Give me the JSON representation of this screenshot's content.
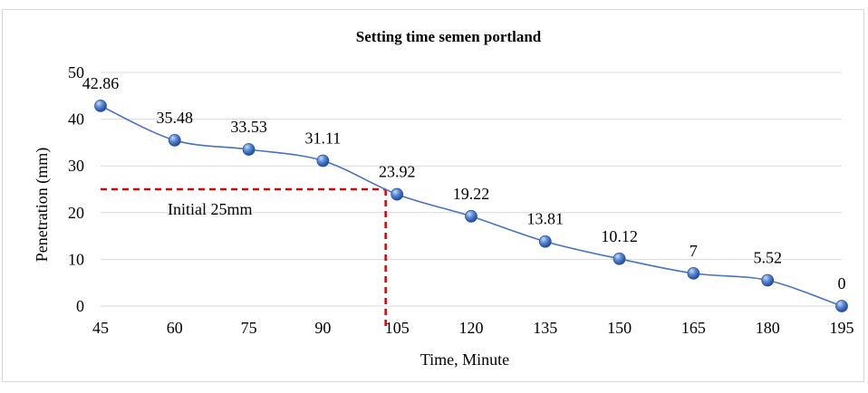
{
  "chart_data": {
    "type": "line",
    "title": "Setting time semen portland",
    "xlabel": "Time, Minute",
    "ylabel": "Penetration (mm)",
    "x": [
      45,
      60,
      75,
      90,
      105,
      120,
      135,
      150,
      165,
      180,
      195
    ],
    "series": [
      {
        "values": [
          42.86,
          35.48,
          33.53,
          31.11,
          23.92,
          19.22,
          13.81,
          10.12,
          7,
          5.52,
          0
        ],
        "labels": [
          "42.86",
          "35.48",
          "33.53",
          "31.11",
          "23.92",
          "19.22",
          "13.81",
          "10.12",
          "7",
          "5.52",
          "0"
        ],
        "color": "#4472c4"
      }
    ],
    "xlim": [
      45,
      195
    ],
    "ylim": [
      0,
      50
    ],
    "yticks": [
      0,
      10,
      20,
      30,
      40,
      50
    ],
    "xticks": [
      45,
      60,
      75,
      90,
      105,
      120,
      135,
      150,
      165,
      180,
      195
    ],
    "grid": "horizontal",
    "annotation": {
      "text": "Initial 25mm",
      "y": 25,
      "x": 102.7,
      "color": "#e00000"
    }
  }
}
